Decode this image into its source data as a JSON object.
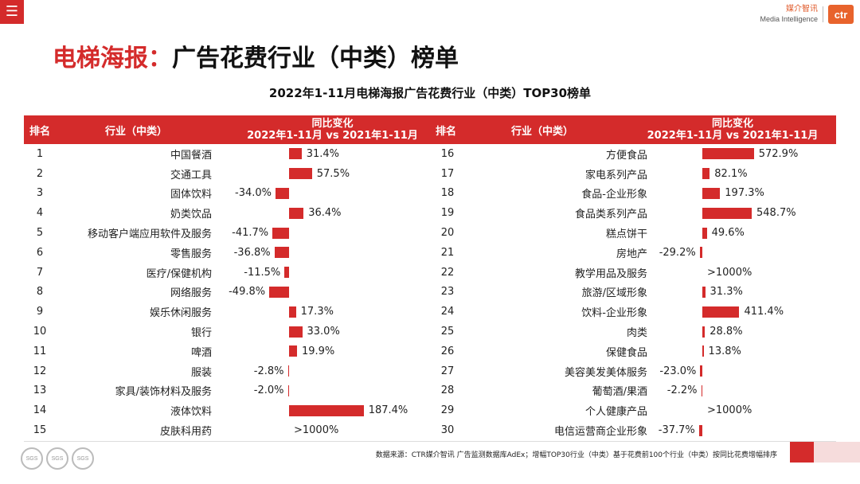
{
  "menu": {
    "icon": "hamburger-icon"
  },
  "brand": {
    "name_cn": "媒介智讯",
    "name_en": "Media Intelligence",
    "logo_text": "ctr"
  },
  "page_title": {
    "highlight": "电梯海报",
    "separator": "：",
    "rest": "广告花费行业（中类）榜单"
  },
  "table_headers": {
    "rank": "排名",
    "industry": "行业（中类）",
    "change_line1": "同比变化",
    "change_line2": "2022年1-11月 vs 2021年1-11月"
  },
  "chart_data": {
    "type": "bar",
    "title": "2022年1-11月电梯海报广告花费行业（中类）TOP30榜单",
    "xlabel": "同比变化",
    "ylabel": "行业（中类）",
    "unit": "%",
    "rows": [
      {
        "rank": 1,
        "industry": "中国餐酒",
        "value": 31.4,
        "label": "31.4%"
      },
      {
        "rank": 2,
        "industry": "交通工具",
        "value": 57.5,
        "label": "57.5%"
      },
      {
        "rank": 3,
        "industry": "固体饮料",
        "value": -34.0,
        "label": "-34.0%"
      },
      {
        "rank": 4,
        "industry": "奶类饮品",
        "value": 36.4,
        "label": "36.4%"
      },
      {
        "rank": 5,
        "industry": "移动客户端应用软件及服务",
        "value": -41.7,
        "label": "-41.7%"
      },
      {
        "rank": 6,
        "industry": "零售服务",
        "value": -36.8,
        "label": "-36.8%"
      },
      {
        "rank": 7,
        "industry": "医疗/保健机构",
        "value": -11.5,
        "label": "-11.5%"
      },
      {
        "rank": 8,
        "industry": "网络服务",
        "value": -49.8,
        "label": "-49.8%"
      },
      {
        "rank": 9,
        "industry": "娱乐休闲服务",
        "value": 17.3,
        "label": "17.3%"
      },
      {
        "rank": 10,
        "industry": "银行",
        "value": 33.0,
        "label": "33.0%"
      },
      {
        "rank": 11,
        "industry": "啤酒",
        "value": 19.9,
        "label": "19.9%"
      },
      {
        "rank": 12,
        "industry": "服装",
        "value": -2.8,
        "label": "-2.8%"
      },
      {
        "rank": 13,
        "industry": "家具/装饰材料及服务",
        "value": -2.0,
        "label": "-2.0%"
      },
      {
        "rank": 14,
        "industry": "液体饮料",
        "value": 187.4,
        "label": "187.4%"
      },
      {
        "rank": 15,
        "industry": "皮肤科用药",
        "value": null,
        "label": ">1000%"
      },
      {
        "rank": 16,
        "industry": "方便食品",
        "value": 572.9,
        "label": "572.9%"
      },
      {
        "rank": 17,
        "industry": "家电系列产品",
        "value": 82.1,
        "label": "82.1%"
      },
      {
        "rank": 18,
        "industry": "食品-企业形象",
        "value": 197.3,
        "label": "197.3%"
      },
      {
        "rank": 19,
        "industry": "食品类系列产品",
        "value": 548.7,
        "label": "548.7%"
      },
      {
        "rank": 20,
        "industry": "糕点饼干",
        "value": 49.6,
        "label": "49.6%"
      },
      {
        "rank": 21,
        "industry": "房地产",
        "value": -29.2,
        "label": "-29.2%"
      },
      {
        "rank": 22,
        "industry": "教学用品及服务",
        "value": null,
        "label": ">1000%"
      },
      {
        "rank": 23,
        "industry": "旅游/区域形象",
        "value": 31.3,
        "label": "31.3%"
      },
      {
        "rank": 24,
        "industry": "饮料-企业形象",
        "value": 411.4,
        "label": "411.4%"
      },
      {
        "rank": 25,
        "industry": "肉类",
        "value": 28.8,
        "label": "28.8%"
      },
      {
        "rank": 26,
        "industry": "保健食品",
        "value": 13.8,
        "label": "13.8%"
      },
      {
        "rank": 27,
        "industry": "美容美发美体服务",
        "value": -23.0,
        "label": "-23.0%"
      },
      {
        "rank": 28,
        "industry": "葡萄酒/果酒",
        "value": -2.2,
        "label": "-2.2%"
      },
      {
        "rank": 29,
        "industry": "个人健康产品",
        "value": null,
        "label": ">1000%"
      },
      {
        "rank": 30,
        "industry": "电信运营商企业形象",
        "value": -37.7,
        "label": "-37.7%"
      }
    ]
  },
  "footer_note": "数据来源：CTR媒介智讯 广告监测数据库AdEx；增幅TOP30行业（中类）基于花费前100个行业（中类）按同比花费增幅排序",
  "seals": [
    "SGS",
    "SGS",
    "SGS"
  ],
  "colors": {
    "accent": "#d42b2b",
    "bar": "#d42b2b",
    "brand": "#e8632c"
  }
}
